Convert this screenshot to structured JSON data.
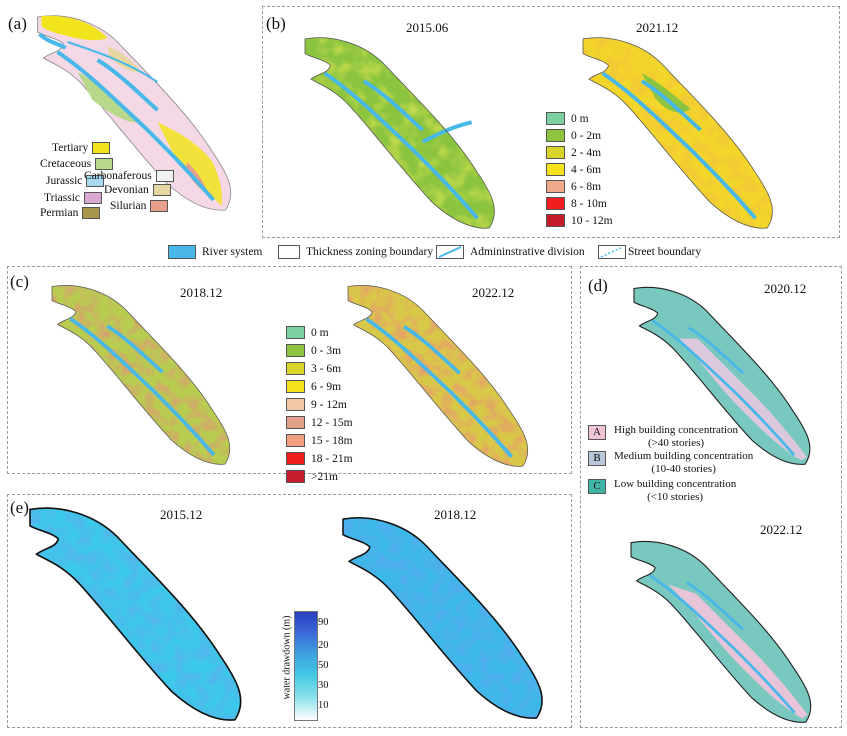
{
  "panels": {
    "a": {
      "label": "(a)"
    },
    "b": {
      "label": "(b)",
      "dates": [
        "2015.06",
        "2021.12"
      ]
    },
    "c": {
      "label": "(c)",
      "dates": [
        "2018.12",
        "2022.12"
      ]
    },
    "d": {
      "label": "(d)",
      "dates": [
        "2020.12",
        "2022.12"
      ]
    },
    "e": {
      "label": "(e)",
      "dates": [
        "2015.12",
        "2018.12"
      ]
    }
  },
  "geology_legend": [
    {
      "label": "Tertiary",
      "color": "#f2e41c"
    },
    {
      "label": "Cretaceous",
      "color": "#b9d98a"
    },
    {
      "label": "Jurassic",
      "color": "#a6d8f0"
    },
    {
      "label": "Triassic",
      "color": "#d9a8d0"
    },
    {
      "label": "Permian",
      "color": "#a8974a"
    },
    {
      "label": "Carbonaferous",
      "color": "#f2f2f2"
    },
    {
      "label": "Devonian",
      "color": "#e6d7a0"
    },
    {
      "label": "Silurian",
      "color": "#e8a08a"
    }
  ],
  "thickness_legend_b": [
    {
      "label": "0 m",
      "color": "#7fd0a0"
    },
    {
      "label": "0 - 2m",
      "color": "#8cc43f"
    },
    {
      "label": "2 - 4m",
      "color": "#d8d42a"
    },
    {
      "label": "4 - 6m",
      "color": "#f6e21a"
    },
    {
      "label": "6 - 8m",
      "color": "#f0a88a"
    },
    {
      "label": "8 - 10m",
      "color": "#f01e1e"
    },
    {
      "label": "10 - 12m",
      "color": "#c41c2a"
    }
  ],
  "thickness_legend_c": [
    {
      "label": "0 m",
      "color": "#7fd0a0"
    },
    {
      "label": "0 - 3m",
      "color": "#8cc43f"
    },
    {
      "label": "3 - 6m",
      "color": "#d8d42a"
    },
    {
      "label": "6 - 9m",
      "color": "#f6e21a"
    },
    {
      "label": "9 - 12m",
      "color": "#f2c9a8"
    },
    {
      "label": "12 - 15m",
      "color": "#e0a08a"
    },
    {
      "label": "15 - 18m",
      "color": "#f0a080"
    },
    {
      "label": "18 - 21m",
      "color": "#f01e1e"
    },
    {
      "label": ">21m",
      "color": "#c41c2a"
    }
  ],
  "map_key": {
    "river": "River system",
    "thickness_boundary": "Thickness zoning boundary",
    "admin_division": "Admininstrative division",
    "street_boundary": "Street boundary",
    "river_color": "#48b8e8"
  },
  "building_legend": [
    {
      "letter": "A",
      "title": "High building concentration",
      "sub": "(>40 stories)",
      "color": "#f1c5d8"
    },
    {
      "letter": "B",
      "title": "Medium building concentration",
      "sub": "(10-40 stories)",
      "color": "#b8c8d8"
    },
    {
      "letter": "C",
      "title": "Low building concentration",
      "sub": "(<10 stories)",
      "color": "#40b4a8"
    }
  ],
  "drawdown": {
    "title": "water drawdown (m)",
    "ticks": [
      "90",
      "20",
      "50",
      "30",
      "10"
    ]
  }
}
